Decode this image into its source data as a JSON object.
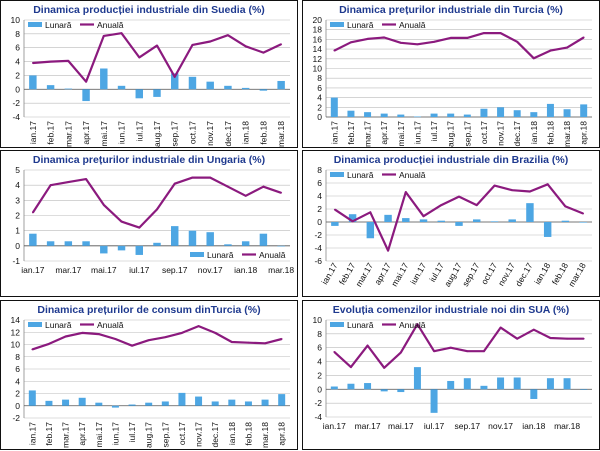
{
  "colors": {
    "lunara": "#4da6e3",
    "anuala": "#8b1a7e",
    "title": "#1f3a8f",
    "border": "#111111",
    "grid": "#bbbbbb"
  },
  "chart_data": [
    {
      "id": "suedia",
      "type": "bar+line",
      "title": "Dinamica producției industriale din Suedia (%)",
      "legend": {
        "lunara": "Lunară",
        "anuala": "Anuală",
        "position": "top-left"
      },
      "ylim": [
        -4,
        10
      ],
      "yticks": [
        -4,
        -2,
        0,
        2,
        4,
        6,
        8,
        10
      ],
      "categories": [
        "ian.17",
        "feb.17",
        "mar.17",
        "apr.17",
        "mai.17",
        "iun.17",
        "iul.17",
        "aug.17",
        "sep.17",
        "oct.17",
        "nov.17",
        "dec.17",
        "ian.18",
        "feb.18",
        "mar.18"
      ],
      "xtick_labels": [
        "ian.17",
        "feb.17",
        "mar.17",
        "apr.17",
        "mai.17",
        "iun.17",
        "iul.17",
        "aug.17",
        "sep.17",
        "oct.17",
        "nov.17",
        "dec.17",
        "ian.18",
        "feb.18",
        "mar.18"
      ],
      "label_rotation": -90,
      "series": [
        {
          "name": "Lunară",
          "kind": "bar",
          "values": [
            2.0,
            0.6,
            0.1,
            -1.7,
            3.0,
            0.5,
            -1.3,
            -1.1,
            2.3,
            1.8,
            1.1,
            0.5,
            0.2,
            -0.2,
            1.2
          ]
        },
        {
          "name": "Anuală",
          "kind": "line",
          "values": [
            3.8,
            4.0,
            4.1,
            1.1,
            7.7,
            8.1,
            4.6,
            6.3,
            1.8,
            6.4,
            6.9,
            7.8,
            6.2,
            5.3,
            6.5
          ]
        }
      ]
    },
    {
      "id": "turcia_ppi",
      "type": "bar+line",
      "title": "Dinamica prețurilor industriale din Turcia (%)",
      "legend": {
        "lunara": "Lunară",
        "anuala": "Anuală",
        "position": "top-left"
      },
      "ylim": [
        0,
        20
      ],
      "yticks": [
        0,
        2,
        4,
        6,
        8,
        10,
        12,
        14,
        16,
        18,
        20
      ],
      "categories": [
        "ian.17",
        "feb.17",
        "mar.17",
        "apr.17",
        "mai.17",
        "iun.17",
        "iul.17",
        "aug.17",
        "sep.17",
        "oct.17",
        "nov.17",
        "dec.17",
        "ian.18",
        "feb.18",
        "mar.18",
        "apr.18"
      ],
      "xtick_labels": [
        "ian.17",
        "feb.17",
        "mar.17",
        "apr.17",
        "mai.17",
        "iun.17",
        "iul.17",
        "aug.17",
        "sep.17",
        "oct.17",
        "nov.17",
        "dec.17",
        "ian.18",
        "feb.18",
        "mar.18",
        "apr.18"
      ],
      "label_rotation": -90,
      "series": [
        {
          "name": "Lunară",
          "kind": "bar",
          "values": [
            4.0,
            1.3,
            1.0,
            0.7,
            0.5,
            0.1,
            0.7,
            0.7,
            0.5,
            1.7,
            2.0,
            1.4,
            1.0,
            2.7,
            1.6,
            2.6
          ]
        },
        {
          "name": "Anuală",
          "kind": "line",
          "values": [
            13.7,
            15.4,
            16.1,
            16.4,
            15.3,
            15.0,
            15.5,
            16.3,
            16.3,
            17.3,
            17.3,
            15.5,
            12.1,
            13.7,
            14.3,
            16.4
          ]
        }
      ]
    },
    {
      "id": "ungaria",
      "type": "bar+line",
      "title": "Dinamica prețurilor industriale din Ungaria (%)",
      "legend": {
        "lunara": "Lunară",
        "anuala": "Anuală",
        "position": "bottom-right"
      },
      "ylim": [
        -1,
        5
      ],
      "yticks": [
        -1,
        0,
        1,
        2,
        3,
        4,
        5
      ],
      "categories": [
        "ian.17",
        "feb.17",
        "mar.17",
        "apr.17",
        "mai.17",
        "iun.17",
        "iul.17",
        "aug.17",
        "sep.17",
        "oct.17",
        "nov.17",
        "dec.17",
        "ian.18",
        "feb.18",
        "mar.18"
      ],
      "xtick_labels": [
        "ian.17",
        "",
        "mar.17",
        "",
        "mai.17",
        "",
        "iul.17",
        "",
        "sep.17",
        "",
        "nov.17",
        "",
        "ian.18",
        "",
        "mar.18"
      ],
      "label_rotation": 0,
      "series": [
        {
          "name": "Lunară",
          "kind": "bar",
          "values": [
            0.8,
            0.3,
            0.3,
            0.3,
            -0.5,
            -0.3,
            -0.6,
            0.2,
            1.3,
            1.0,
            0.9,
            0.1,
            0.3,
            0.8,
            0.0
          ]
        },
        {
          "name": "Anuală",
          "kind": "line",
          "values": [
            2.2,
            4.0,
            4.2,
            4.4,
            2.7,
            1.6,
            1.2,
            2.4,
            4.1,
            4.5,
            4.5,
            3.9,
            3.3,
            3.9,
            3.5
          ]
        }
      ]
    },
    {
      "id": "brazilia",
      "type": "bar+line",
      "title": "Dinamica producției industriale din Brazilia (%)",
      "legend": {
        "lunara": "Lunară",
        "anuala": "Anuală",
        "position": "top-left"
      },
      "ylim": [
        -6,
        8
      ],
      "yticks": [
        -6,
        -4,
        -2,
        0,
        2,
        4,
        6,
        8
      ],
      "categories": [
        "ian.17",
        "feb.17",
        "mar.17",
        "apr.17",
        "mai.17",
        "iun.17",
        "iul.17",
        "aug.17",
        "sep.17",
        "oct.17",
        "nov.17",
        "dec.17",
        "ian.18",
        "feb.18",
        "mar.18"
      ],
      "xtick_labels": [
        "ian.17",
        "feb.17",
        "mar.17",
        "apr.17",
        "mai.17",
        "iun.17",
        "iul.17",
        "aug.17",
        "sep.17",
        "oct.17",
        "nov.17",
        "dec.17",
        "ian.18",
        "feb.18",
        "mar.18"
      ],
      "label_rotation": -60,
      "series": [
        {
          "name": "Lunară",
          "kind": "bar",
          "values": [
            -0.6,
            1.2,
            -2.5,
            1.1,
            0.6,
            0.4,
            0.2,
            -0.6,
            0.4,
            0.1,
            0.4,
            2.9,
            -2.3,
            0.2,
            0.0
          ]
        },
        {
          "name": "Anuală",
          "kind": "line",
          "values": [
            1.9,
            0.1,
            1.5,
            -4.4,
            4.6,
            0.9,
            2.6,
            3.9,
            2.6,
            5.6,
            4.9,
            4.7,
            5.8,
            2.4,
            1.3
          ]
        }
      ]
    },
    {
      "id": "turcia_cpi",
      "type": "bar+line",
      "title": "Dinamica prețurilor de consum dinTurcia (%)",
      "legend": {
        "lunara": "Lunară",
        "anuala": "Anuală",
        "position": "top-left"
      },
      "ylim": [
        -2,
        14
      ],
      "yticks": [
        -2,
        0,
        2,
        4,
        6,
        8,
        10,
        12,
        14
      ],
      "categories": [
        "ian.17",
        "feb.17",
        "mar.17",
        "apr.17",
        "mai.17",
        "iun.17",
        "iul.17",
        "aug.17",
        "sep.17",
        "oct.17",
        "nov.17",
        "dec.17",
        "ian.18",
        "feb.18",
        "mar.18",
        "apr.18"
      ],
      "xtick_labels": [
        "ian.17",
        "feb.17",
        "mar.17",
        "apr.17",
        "mai.17",
        "iun.17",
        "iul.17",
        "aug.17",
        "sep.17",
        "oct.17",
        "nov.17",
        "dec.17",
        "ian.18",
        "feb.18",
        "mar.18",
        "apr.18"
      ],
      "label_rotation": -90,
      "series": [
        {
          "name": "Lunară",
          "kind": "bar",
          "values": [
            2.5,
            0.8,
            1.0,
            1.3,
            0.5,
            -0.3,
            0.2,
            0.5,
            0.7,
            2.1,
            1.5,
            0.7,
            1.0,
            0.7,
            1.0,
            1.9
          ]
        },
        {
          "name": "Anuală",
          "kind": "line",
          "values": [
            9.2,
            10.1,
            11.3,
            11.9,
            11.7,
            10.9,
            9.8,
            10.7,
            11.2,
            11.9,
            13.0,
            11.9,
            10.4,
            10.3,
            10.2,
            10.9
          ]
        }
      ]
    },
    {
      "id": "sua",
      "type": "bar+line",
      "title": "Evoluția comenzilor industriale noi din SUA (%)",
      "legend": {
        "lunara": "Lunară",
        "anuala": "Anuală",
        "position": "top-left"
      },
      "ylim": [
        -4,
        10
      ],
      "yticks": [
        -4,
        -2,
        0,
        2,
        4,
        6,
        8,
        10
      ],
      "categories": [
        "ian.17",
        "feb.17",
        "mar.17",
        "apr.17",
        "mai.17",
        "iun.17",
        "iul.17",
        "aug.17",
        "sep.17",
        "oct.17",
        "nov.17",
        "dec.17",
        "ian.18",
        "feb.18",
        "mar.18",
        "apr.18"
      ],
      "xtick_labels": [
        "ian.17",
        "",
        "mar.17",
        "",
        "mai.17",
        "",
        "iul.17",
        "",
        "sep.17",
        "",
        "nov.17",
        "",
        "ian.18",
        "",
        "mar.18",
        ""
      ],
      "label_rotation": 0,
      "series": [
        {
          "name": "Lunară",
          "kind": "bar",
          "values": [
            0.4,
            0.8,
            0.9,
            -0.3,
            -0.4,
            3.2,
            -3.4,
            1.2,
            1.6,
            0.5,
            1.7,
            1.7,
            -1.4,
            1.6,
            1.6,
            0.0
          ]
        },
        {
          "name": "Anuală",
          "kind": "line",
          "values": [
            5.4,
            3.2,
            6.3,
            3.1,
            5.3,
            9.4,
            5.5,
            6.0,
            5.5,
            5.5,
            8.9,
            7.3,
            8.6,
            7.4,
            7.3,
            7.3
          ]
        }
      ]
    }
  ]
}
